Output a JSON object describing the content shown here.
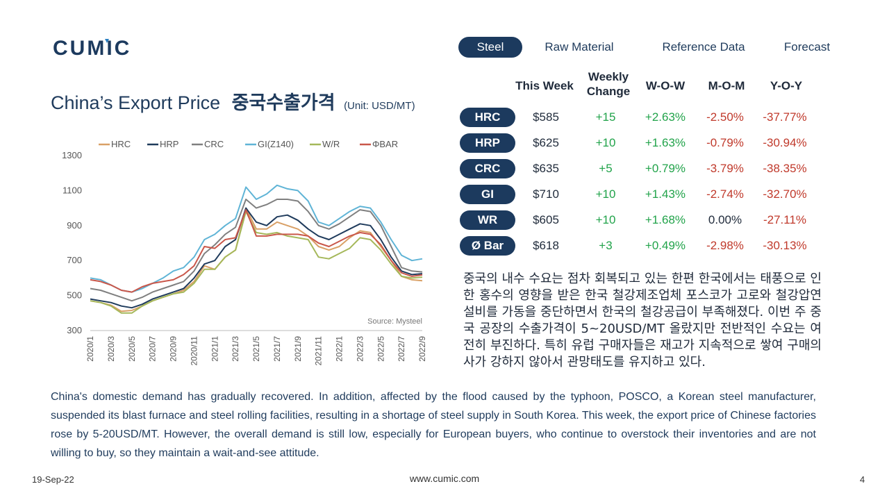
{
  "brand": {
    "logo_text": "CUMIC"
  },
  "nav": {
    "tabs": [
      "Steel",
      "Raw Material",
      "Reference Data",
      "Forecast"
    ],
    "active": 0
  },
  "title": {
    "en": "China’s Export Price",
    "ko": "중국수출가격",
    "unit": "(Unit: USD/MT)"
  },
  "table": {
    "headers": {
      "this_week": "This Week",
      "weekly_change_1": "Weekly",
      "weekly_change_2": "Change",
      "wow": "W-O-W",
      "mom": "M-O-M",
      "yoy": "Y-O-Y"
    },
    "rows": [
      {
        "product": "HRC",
        "price": "$585",
        "change": "+15",
        "wow": "+2.63%",
        "mom": "-2.50%",
        "yoy": "-37.77%"
      },
      {
        "product": "HRP",
        "price": "$625",
        "change": "+10",
        "wow": "+1.63%",
        "mom": "-0.79%",
        "yoy": "-30.94%"
      },
      {
        "product": "CRC",
        "price": "$635",
        "change": "+5",
        "wow": "+0.79%",
        "mom": "-3.79%",
        "yoy": "-38.35%"
      },
      {
        "product": "GI",
        "price": "$710",
        "change": "+10",
        "wow": "+1.43%",
        "mom": "-2.74%",
        "yoy": "-32.70%"
      },
      {
        "product": "WR",
        "price": "$605",
        "change": "+10",
        "wow": "+1.68%",
        "mom": "0.00%",
        "yoy": "-27.11%"
      },
      {
        "product": "Ø Bar",
        "price": "$618",
        "change": "+3",
        "wow": "+0.49%",
        "mom": "-2.98%",
        "yoy": "-30.13%"
      }
    ]
  },
  "korean_text": "중국의 내수 수요는 점차 회복되고 있는 한편 한국에서는 태풍으로 인한 홍수의 영향을 받은 한국 철강제조업체 포스코가 고로와 철강압연설비를 가동을 중단하면서 한국의 철강공급이 부족해졌다. 이번 주 중국 공장의 수출가격이 5~20USD/MT 올랐지만 전반적인 수요는 여전히 부진하다. 특히 유럽 구매자들은 재고가 지속적으로 쌓여 구매의사가 강하지 않아서 관망태도를 유지하고 있다.",
  "english_text": "China's domestic demand has gradually recovered. In addition, affected by the flood caused by the typhoon, POSCO, a Korean steel manufacturer, suspended its blast furnace and steel rolling facilities, resulting in a shortage of steel supply in South Korea. This week, the export price of Chinese factories rose by 5-20USD/MT. However, the overall demand is still low, especially for European buyers, who continue to overstock their inventories and are not willing to buy, so they maintain a wait-and-see attitude.",
  "footer": {
    "date": "19-Sep-22",
    "url": "www.cumic.com",
    "page": "4"
  },
  "colors": {
    "navy": "#1c3a5e",
    "green": "#21a34a",
    "red": "#c0392b",
    "accent_blue": "#2a7fc1"
  },
  "chart_data": {
    "type": "line",
    "x": [
      "2020/1",
      "2020/2",
      "2020/3",
      "2020/4",
      "2020/5",
      "2020/6",
      "2020/7",
      "2020/8",
      "2020/9",
      "2020/10",
      "2020/11",
      "2020/12",
      "2021/1",
      "2021/2",
      "2021/3",
      "2021/4",
      "2021/5",
      "2021/6",
      "2021/7",
      "2021/8",
      "2021/9",
      "2021/10",
      "2021/11",
      "2021/12",
      "2022/1",
      "2022/2",
      "2022/3",
      "2022/4",
      "2022/5",
      "2022/6",
      "2022/7",
      "2022/8",
      "2022/9"
    ],
    "x_tick_labels": [
      "2020/1",
      "2020/3",
      "2020/5",
      "2020/7",
      "2020/9",
      "2020/11",
      "2021/1",
      "2021/3",
      "2021/5",
      "2021/7",
      "2021/9",
      "2021/11",
      "2022/1",
      "2022/3",
      "2022/5",
      "2022/7",
      "2022/9"
    ],
    "ylim": [
      300,
      1300
    ],
    "yticks": [
      300,
      500,
      700,
      900,
      1100,
      1300
    ],
    "source": "Source: Mysteel",
    "series": [
      {
        "name": "HRC",
        "color": "#d9a066",
        "values": [
          470,
          460,
          445,
          410,
          415,
          440,
          470,
          490,
          510,
          530,
          580,
          670,
          650,
          720,
          760,
          1000,
          880,
          880,
          920,
          900,
          880,
          840,
          780,
          760,
          780,
          830,
          870,
          860,
          780,
          700,
          610,
          590,
          585
        ]
      },
      {
        "name": "HRP",
        "color": "#1f3b5c",
        "values": [
          480,
          470,
          460,
          440,
          430,
          450,
          480,
          500,
          520,
          540,
          600,
          680,
          700,
          780,
          820,
          1000,
          920,
          900,
          950,
          960,
          930,
          880,
          840,
          820,
          850,
          880,
          910,
          900,
          820,
          720,
          640,
          620,
          625
        ]
      },
      {
        "name": "CRC",
        "color": "#7f7f7f",
        "values": [
          540,
          530,
          510,
          490,
          470,
          490,
          520,
          540,
          560,
          580,
          640,
          740,
          790,
          850,
          890,
          1050,
          1000,
          1020,
          1050,
          1050,
          1040,
          980,
          900,
          880,
          910,
          950,
          990,
          980,
          900,
          780,
          660,
          640,
          635
        ]
      },
      {
        "name": "GI(Z140)",
        "color": "#5fb4d6",
        "values": [
          600,
          590,
          560,
          530,
          520,
          540,
          570,
          600,
          640,
          660,
          720,
          820,
          850,
          900,
          940,
          1120,
          1050,
          1080,
          1130,
          1110,
          1100,
          1040,
          920,
          900,
          940,
          980,
          1010,
          1000,
          920,
          820,
          730,
          700,
          710
        ]
      },
      {
        "name": "W/R",
        "color": "#a5b85a",
        "values": [
          470,
          460,
          440,
          400,
          400,
          440,
          470,
          490,
          510,
          520,
          570,
          650,
          650,
          720,
          760,
          980,
          860,
          850,
          860,
          840,
          830,
          820,
          720,
          710,
          740,
          770,
          830,
          820,
          760,
          680,
          610,
          600,
          605
        ]
      },
      {
        "name": "ΦBAR",
        "color": "#c9574a",
        "values": [
          590,
          580,
          560,
          530,
          520,
          550,
          570,
          580,
          590,
          620,
          670,
          780,
          770,
          820,
          830,
          990,
          840,
          840,
          850,
          850,
          850,
          840,
          800,
          780,
          810,
          840,
          860,
          850,
          790,
          700,
          630,
          610,
          618
        ]
      }
    ]
  }
}
